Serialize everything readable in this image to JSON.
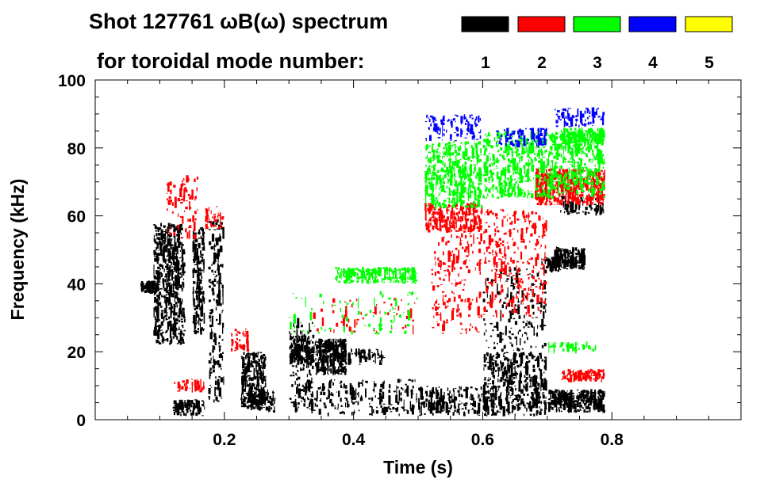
{
  "header": {
    "title": "Shot 127761 ωB(ω) spectrum",
    "subtitle": "for toroidal mode number:"
  },
  "chart_data": {
    "type": "heatmap",
    "title": "Shot 127761 ωB(ω) spectrum",
    "subtitle": "for toroidal mode number:",
    "xlabel": "Time (s)",
    "ylabel": "Frequency (kHz)",
    "xlim": [
      0.0,
      1.0
    ],
    "ylim": [
      0,
      100
    ],
    "x_ticks": [
      {
        "value": 0.2,
        "label": "0.2"
      },
      {
        "value": 0.4,
        "label": "0.4"
      },
      {
        "value": 0.6,
        "label": "0.6"
      },
      {
        "value": 0.8,
        "label": "0.8"
      }
    ],
    "y_ticks": [
      {
        "value": 0,
        "label": "0"
      },
      {
        "value": 20,
        "label": "20"
      },
      {
        "value": 40,
        "label": "40"
      },
      {
        "value": 60,
        "label": "60"
      },
      {
        "value": 80,
        "label": "80"
      },
      {
        "value": 100,
        "label": "100"
      }
    ],
    "legend": [
      {
        "n": "1",
        "color": "#000000"
      },
      {
        "n": "2",
        "color": "#ff0000"
      },
      {
        "n": "3",
        "color": "#00ff00"
      },
      {
        "n": "4",
        "color": "#0000ff"
      },
      {
        "n": "5",
        "color": "#ffff00"
      }
    ],
    "features": [
      {
        "mode": 1,
        "t": [
          0.07,
          0.1
        ],
        "f": [
          37,
          41
        ],
        "d": 0.9
      },
      {
        "mode": 1,
        "t": [
          0.09,
          0.14
        ],
        "f": [
          22,
          58
        ],
        "d": 0.55
      },
      {
        "mode": 1,
        "t": [
          0.15,
          0.17
        ],
        "f": [
          25,
          57
        ],
        "d": 0.5
      },
      {
        "mode": 1,
        "t": [
          0.12,
          0.17
        ],
        "f": [
          1,
          6
        ],
        "d": 0.6
      },
      {
        "mode": 1,
        "t": [
          0.175,
          0.2
        ],
        "f": [
          5,
          60
        ],
        "d": 0.22
      },
      {
        "mode": 1,
        "t": [
          0.225,
          0.265
        ],
        "f": [
          3,
          20
        ],
        "d": 0.7
      },
      {
        "mode": 1,
        "t": [
          0.24,
          0.28
        ],
        "f": [
          2,
          9
        ],
        "d": 0.5
      },
      {
        "mode": 1,
        "t": [
          0.3,
          0.34
        ],
        "f": [
          16,
          25
        ],
        "d": 0.75
      },
      {
        "mode": 1,
        "t": [
          0.34,
          0.39
        ],
        "f": [
          13,
          24
        ],
        "d": 0.85
      },
      {
        "mode": 1,
        "t": [
          0.39,
          0.45
        ],
        "f": [
          16,
          21
        ],
        "d": 0.3
      },
      {
        "mode": 1,
        "t": [
          0.3,
          0.34
        ],
        "f": [
          2,
          30
        ],
        "d": 0.2
      },
      {
        "mode": 1,
        "t": [
          0.33,
          0.5
        ],
        "f": [
          1,
          12
        ],
        "d": 0.18
      },
      {
        "mode": 1,
        "t": [
          0.5,
          0.6
        ],
        "f": [
          1,
          10
        ],
        "d": 0.35
      },
      {
        "mode": 1,
        "t": [
          0.6,
          0.7
        ],
        "f": [
          1,
          20
        ],
        "d": 0.4
      },
      {
        "mode": 1,
        "t": [
          0.7,
          0.79
        ],
        "f": [
          2,
          9
        ],
        "d": 0.85
      },
      {
        "mode": 1,
        "t": [
          0.71,
          0.76
        ],
        "f": [
          44,
          51
        ],
        "d": 0.8
      },
      {
        "mode": 1,
        "t": [
          0.69,
          0.72
        ],
        "f": [
          43,
          48
        ],
        "d": 0.7
      },
      {
        "mode": 1,
        "t": [
          0.72,
          0.79
        ],
        "f": [
          60,
          66
        ],
        "d": 0.3
      },
      {
        "mode": 1,
        "t": [
          0.6,
          0.7
        ],
        "f": [
          20,
          45
        ],
        "d": 0.12
      },
      {
        "mode": 2,
        "t": [
          0.11,
          0.16
        ],
        "f": [
          53,
          72
        ],
        "d": 0.15
      },
      {
        "mode": 2,
        "t": [
          0.17,
          0.2
        ],
        "f": [
          56,
          63
        ],
        "d": 0.3
      },
      {
        "mode": 2,
        "t": [
          0.12,
          0.17
        ],
        "f": [
          8,
          12
        ],
        "d": 0.35
      },
      {
        "mode": 2,
        "t": [
          0.21,
          0.24
        ],
        "f": [
          20,
          27
        ],
        "d": 0.3
      },
      {
        "mode": 2,
        "t": [
          0.51,
          0.6
        ],
        "f": [
          55,
          64
        ],
        "d": 0.45
      },
      {
        "mode": 2,
        "t": [
          0.52,
          0.6
        ],
        "f": [
          25,
          55
        ],
        "d": 0.13
      },
      {
        "mode": 2,
        "t": [
          0.6,
          0.7
        ],
        "f": [
          30,
          62
        ],
        "d": 0.15
      },
      {
        "mode": 2,
        "t": [
          0.68,
          0.79
        ],
        "f": [
          63,
          74
        ],
        "d": 0.65
      },
      {
        "mode": 2,
        "t": [
          0.72,
          0.79
        ],
        "f": [
          11,
          15
        ],
        "d": 0.75
      },
      {
        "mode": 2,
        "t": [
          0.33,
          0.5
        ],
        "f": [
          25,
          36
        ],
        "d": 0.05
      },
      {
        "mode": 3,
        "t": [
          0.37,
          0.5
        ],
        "f": [
          40,
          45
        ],
        "d": 0.6
      },
      {
        "mode": 3,
        "t": [
          0.51,
          0.6
        ],
        "f": [
          62,
          82
        ],
        "d": 0.4
      },
      {
        "mode": 3,
        "t": [
          0.6,
          0.79
        ],
        "f": [
          65,
          85
        ],
        "d": 0.35
      },
      {
        "mode": 3,
        "t": [
          0.72,
          0.79
        ],
        "f": [
          81,
          86
        ],
        "d": 0.7
      },
      {
        "mode": 3,
        "t": [
          0.3,
          0.5
        ],
        "f": [
          25,
          38
        ],
        "d": 0.05
      },
      {
        "mode": 3,
        "t": [
          0.7,
          0.78
        ],
        "f": [
          20,
          23
        ],
        "d": 0.3
      },
      {
        "mode": 4,
        "t": [
          0.51,
          0.6
        ],
        "f": [
          82,
          90
        ],
        "d": 0.25
      },
      {
        "mode": 4,
        "t": [
          0.62,
          0.7
        ],
        "f": [
          80,
          86
        ],
        "d": 0.3
      },
      {
        "mode": 4,
        "t": [
          0.71,
          0.79
        ],
        "f": [
          86,
          92
        ],
        "d": 0.3
      }
    ]
  }
}
